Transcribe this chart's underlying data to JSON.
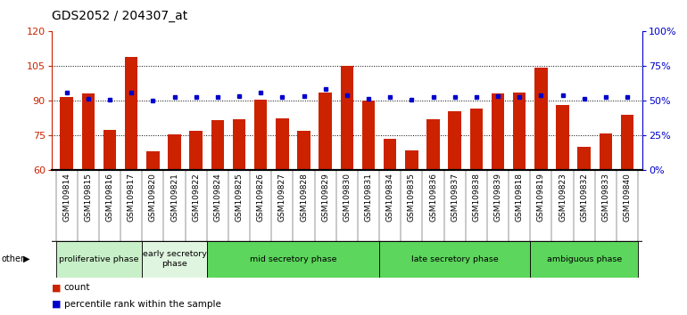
{
  "title": "GDS2052 / 204307_at",
  "samples": [
    "GSM109814",
    "GSM109815",
    "GSM109816",
    "GSM109817",
    "GSM109820",
    "GSM109821",
    "GSM109822",
    "GSM109824",
    "GSM109825",
    "GSM109826",
    "GSM109827",
    "GSM109828",
    "GSM109829",
    "GSM109830",
    "GSM109831",
    "GSM109834",
    "GSM109835",
    "GSM109836",
    "GSM109837",
    "GSM109838",
    "GSM109839",
    "GSM109818",
    "GSM109819",
    "GSM109823",
    "GSM109832",
    "GSM109833",
    "GSM109840"
  ],
  "bar_values": [
    91.5,
    93.0,
    77.5,
    109.0,
    68.0,
    75.5,
    77.0,
    81.5,
    82.0,
    90.5,
    82.5,
    77.0,
    93.5,
    105.0,
    90.0,
    73.5,
    68.5,
    82.0,
    85.5,
    86.5,
    93.0,
    93.5,
    104.5,
    88.0,
    70.0,
    76.0,
    84.0
  ],
  "dot_values": [
    93.5,
    91.0,
    90.5,
    93.5,
    90.0,
    91.5,
    91.5,
    91.5,
    92.0,
    93.5,
    91.5,
    92.0,
    95.0,
    92.5,
    91.0,
    91.5,
    90.5,
    91.5,
    91.5,
    91.5,
    92.0,
    91.5,
    92.5,
    92.5,
    91.0,
    91.5,
    91.5
  ],
  "bar_color": "#cc2200",
  "dot_color": "#0000cc",
  "ymin": 60,
  "ymax": 120,
  "yticks": [
    60,
    75,
    90,
    105,
    120
  ],
  "ytick_labels_right": [
    "0%",
    "25%",
    "50%",
    "75%",
    "100%"
  ],
  "grid_lines": [
    75,
    90,
    105
  ],
  "phases": [
    {
      "label": "proliferative phase",
      "start": 0,
      "end": 4,
      "color": "#c8f0c8"
    },
    {
      "label": "early secretory\nphase",
      "start": 4,
      "end": 7,
      "color": "#e0f5e0"
    },
    {
      "label": "mid secretory phase",
      "start": 7,
      "end": 15,
      "color": "#5cd65c"
    },
    {
      "label": "late secretory phase",
      "start": 15,
      "end": 22,
      "color": "#5cd65c"
    },
    {
      "label": "ambiguous phase",
      "start": 22,
      "end": 27,
      "color": "#5cd65c"
    }
  ],
  "tick_bg_color": "#c8c8c8",
  "title_fontsize": 10,
  "tick_fontsize": 6.5,
  "bar_width": 0.6
}
